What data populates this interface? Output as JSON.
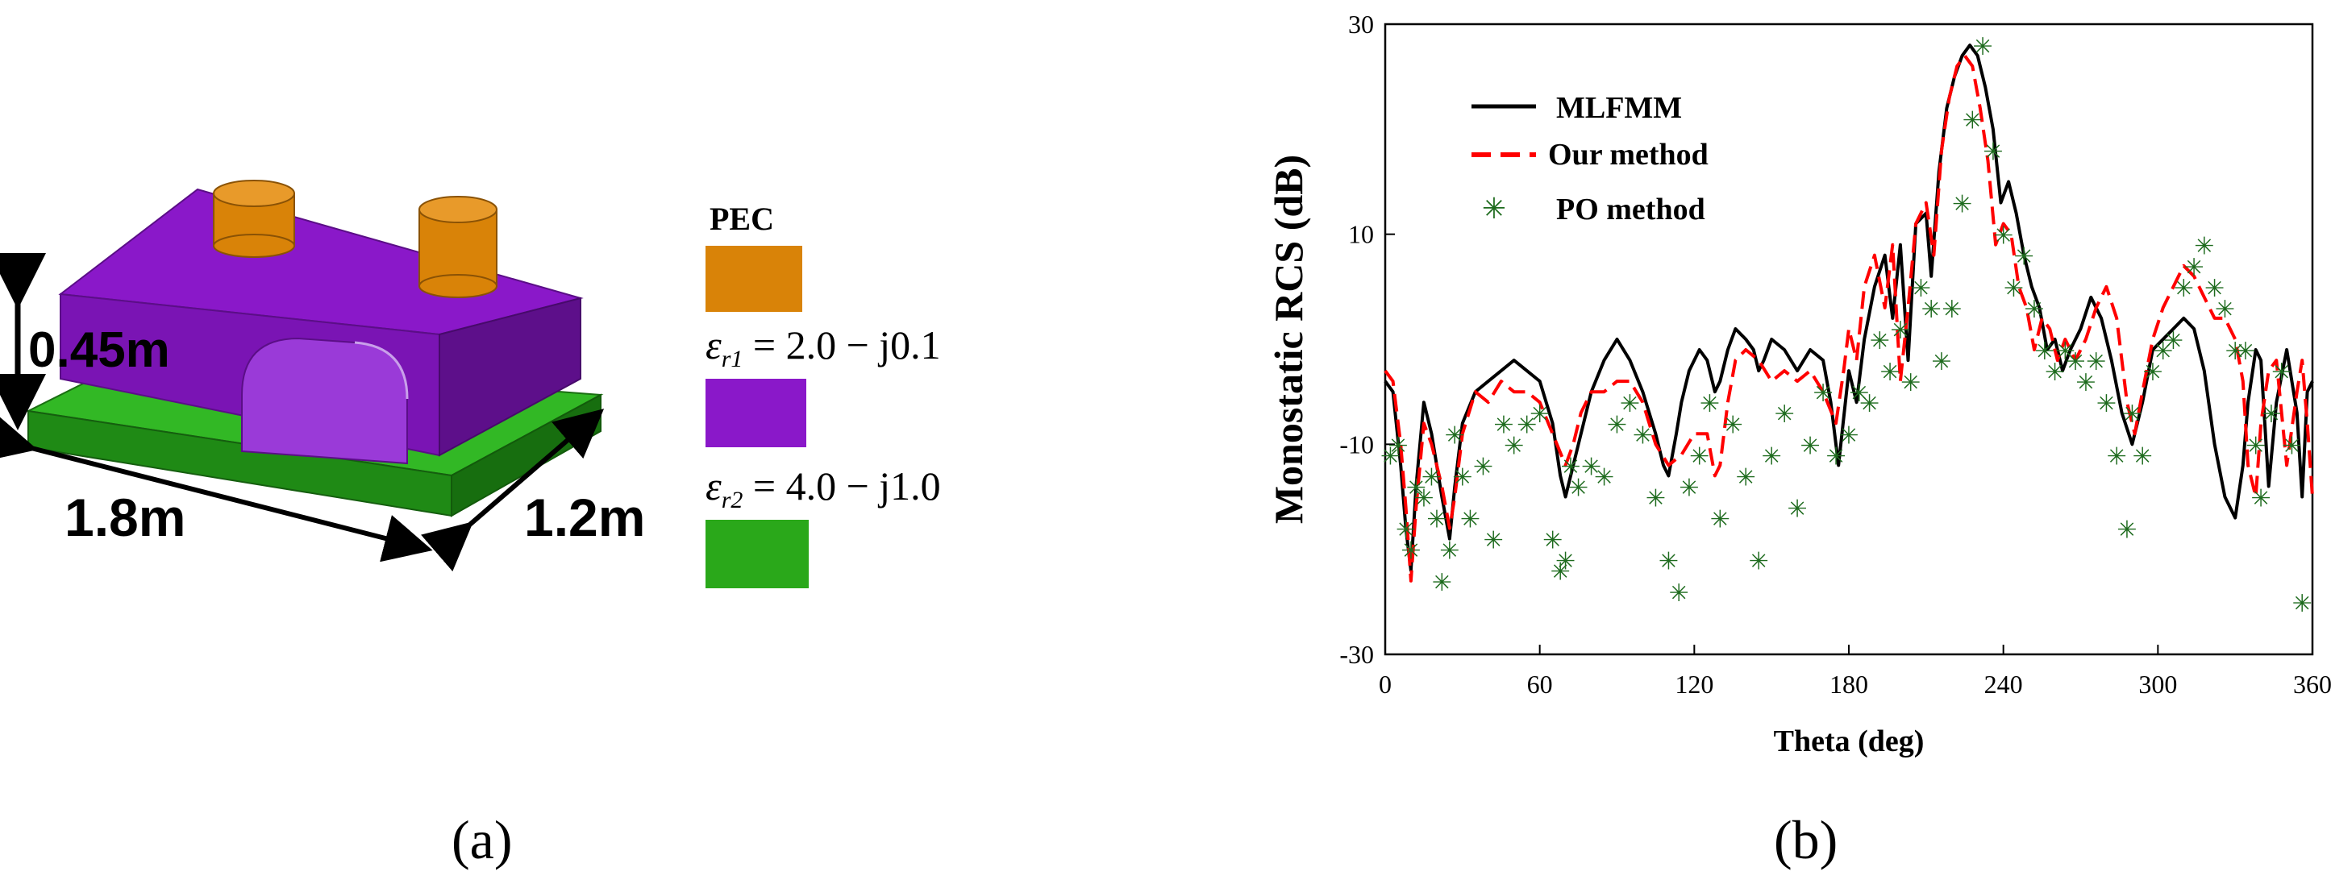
{
  "figure_a": {
    "caption": "(a)",
    "dimensions": {
      "height": "0.45m",
      "length": "1.8m",
      "width": "1.2m"
    },
    "legend": [
      {
        "label": "PEC",
        "color": "#d98308"
      },
      {
        "label_symbol": "ε",
        "label_sub": "r1",
        "label_rest": " = 2.0 − j0.1",
        "color": "#8a18c9"
      },
      {
        "label_symbol": "ε",
        "label_sub": "r2",
        "label_rest": " = 4.0 − j1.0",
        "color": "#2aa81a"
      }
    ],
    "colors": {
      "pec": "#d98308",
      "er1": "#8a18c9",
      "er2": "#2aa81a"
    }
  },
  "figure_b": {
    "caption": "(b)",
    "legend": {
      "mlfmm": "MLFMM",
      "ours": "Our method",
      "po": "PO method"
    }
  },
  "chart_data": {
    "type": "line",
    "title": "",
    "xlabel": "Theta (deg)",
    "ylabel": "Monostatic RCS (dB)",
    "xlim": [
      0,
      360
    ],
    "ylim": [
      -30,
      30
    ],
    "xticks": [
      "0",
      "60",
      "120",
      "180",
      "240",
      "300",
      "360"
    ],
    "yticks": [
      "30",
      "10",
      "-10",
      "-30"
    ],
    "legend_position": "top-left",
    "series": [
      {
        "name": "MLFMM",
        "color": "#000000",
        "style": "solid",
        "x": [
          0,
          3,
          6,
          8,
          10,
          12,
          15,
          18,
          22,
          25,
          27,
          30,
          35,
          40,
          45,
          50,
          55,
          60,
          65,
          68,
          70,
          72,
          75,
          80,
          85,
          90,
          95,
          100,
          105,
          108,
          110,
          113,
          115,
          118,
          122,
          125,
          128,
          130,
          133,
          136,
          140,
          143,
          145,
          147,
          150,
          155,
          160,
          165,
          170,
          173,
          176,
          180,
          183,
          186,
          190,
          194,
          197,
          200,
          203,
          206,
          210,
          212,
          215,
          218,
          221,
          224,
          227,
          230,
          233,
          236,
          239,
          242,
          245,
          248,
          251,
          254,
          257,
          260,
          263,
          266,
          270,
          274,
          278,
          282,
          286,
          290,
          294,
          298,
          302,
          306,
          310,
          314,
          318,
          322,
          326,
          330,
          333,
          335,
          338,
          340,
          343,
          346,
          350,
          354,
          356,
          358,
          360
        ],
        "y": [
          -4,
          -5,
          -12,
          -18,
          -22,
          -14,
          -6,
          -9,
          -15,
          -19,
          -14,
          -8,
          -5,
          -4,
          -3,
          -2,
          -3,
          -4,
          -8,
          -13,
          -15,
          -13,
          -10,
          -5,
          -2,
          0,
          -2,
          -5,
          -9,
          -12,
          -13,
          -9,
          -6,
          -3,
          -1,
          -2,
          -5,
          -4,
          -1,
          1,
          0,
          -1,
          -3,
          -2,
          0,
          -1,
          -3,
          -1,
          -2,
          -6,
          -12,
          -3,
          -6,
          0,
          5,
          8,
          2,
          9,
          -2,
          11,
          12,
          6,
          16,
          22,
          25,
          27,
          28,
          27,
          24,
          20,
          13,
          15,
          12,
          8,
          5,
          3,
          -1,
          0,
          -3,
          -1,
          1,
          4,
          2,
          -2,
          -7,
          -10,
          -6,
          -1,
          0,
          1,
          2,
          1,
          -3,
          -10,
          -15,
          -17,
          -12,
          -6,
          -1,
          -2,
          -14,
          -6,
          -1,
          -7,
          -15,
          -5,
          -4
        ],
        "values": [
          -4,
          -5,
          -12,
          -18,
          -22,
          -14,
          -6,
          -9,
          -15,
          -19,
          -14,
          -8,
          -5,
          -4,
          -3,
          -2,
          -3,
          -4,
          -8,
          -13,
          -15,
          -13,
          -10,
          -5,
          -2,
          0,
          -2,
          -5,
          -9,
          -12,
          -13,
          -9,
          -6,
          -3,
          -1,
          -2,
          -5,
          -4,
          -1,
          1,
          0,
          -1,
          -3,
          -2,
          0,
          -1,
          -3,
          -1,
          -2,
          -6,
          -12,
          -3,
          -6,
          0,
          5,
          8,
          2,
          9,
          -2,
          11,
          12,
          6,
          16,
          22,
          25,
          27,
          28,
          27,
          24,
          20,
          13,
          15,
          12,
          8,
          5,
          3,
          -1,
          0,
          -3,
          -1,
          1,
          4,
          2,
          -2,
          -7,
          -10,
          -6,
          -1,
          0,
          1,
          2,
          1,
          -3,
          -10,
          -15,
          -17,
          -12,
          -6,
          -1,
          -2,
          -14,
          -6,
          -1,
          -7,
          -15,
          -5,
          -4
        ]
      },
      {
        "name": "Our method",
        "color": "#ff0000",
        "style": "dashed",
        "x": [
          0,
          3,
          6,
          8,
          10,
          12,
          15,
          18,
          22,
          25,
          27,
          30,
          35,
          40,
          45,
          50,
          55,
          60,
          65,
          70,
          73,
          76,
          80,
          85,
          90,
          95,
          100,
          105,
          110,
          115,
          120,
          125,
          128,
          130,
          133,
          136,
          140,
          145,
          150,
          155,
          160,
          165,
          170,
          175,
          178,
          180,
          183,
          186,
          190,
          194,
          197,
          200,
          203,
          206,
          210,
          213,
          216,
          219,
          222,
          225,
          228,
          231,
          234,
          237,
          240,
          243,
          246,
          249,
          252,
          255,
          258,
          261,
          264,
          268,
          272,
          276,
          280,
          284,
          288,
          291,
          294,
          298,
          302,
          306,
          310,
          314,
          318,
          322,
          326,
          330,
          333,
          335,
          338,
          340,
          343,
          346,
          350,
          354,
          356,
          358,
          360
        ],
        "y": [
          -3,
          -4,
          -10,
          -16,
          -23,
          -16,
          -8,
          -10,
          -14,
          -18,
          -15,
          -9,
          -5,
          -6,
          -4,
          -5,
          -5,
          -6,
          -9,
          -12,
          -10,
          -7,
          -5,
          -5,
          -4,
          -4,
          -6,
          -10,
          -12,
          -11,
          -9,
          -9,
          -13,
          -12,
          -6,
          -2,
          -1,
          -2,
          -4,
          -3,
          -4,
          -3,
          -5,
          -8,
          -3,
          1,
          -2,
          5,
          8,
          3,
          9,
          -4,
          3,
          11,
          13,
          8,
          18,
          23,
          26,
          27,
          26,
          22,
          17,
          9,
          11,
          10,
          5,
          3,
          -1,
          2,
          1,
          -2,
          0,
          -2,
          0,
          3,
          5,
          2,
          -6,
          -9,
          -5,
          0,
          3,
          5,
          7,
          6,
          4,
          2,
          2,
          0,
          -4,
          -12,
          -15,
          -8,
          -3,
          -2,
          -12,
          -5,
          -2,
          -8,
          -15
        ],
        "values": [
          -3,
          -4,
          -10,
          -16,
          -23,
          -16,
          -8,
          -10,
          -14,
          -18,
          -15,
          -9,
          -5,
          -6,
          -4,
          -5,
          -5,
          -6,
          -9,
          -12,
          -10,
          -7,
          -5,
          -5,
          -4,
          -4,
          -6,
          -10,
          -12,
          -11,
          -9,
          -9,
          -13,
          -12,
          -6,
          -2,
          -1,
          -2,
          -4,
          -3,
          -4,
          -3,
          -5,
          -8,
          -3,
          1,
          -2,
          5,
          8,
          3,
          9,
          -4,
          3,
          11,
          13,
          8,
          18,
          23,
          26,
          27,
          26,
          22,
          17,
          9,
          11,
          10,
          5,
          3,
          -1,
          2,
          1,
          -2,
          0,
          -2,
          0,
          3,
          5,
          2,
          -6,
          -9,
          -5,
          0,
          3,
          5,
          7,
          6,
          4,
          2,
          2,
          0,
          -4,
          -12,
          -15,
          -8,
          -3,
          -2,
          -12,
          -5,
          -2,
          -8,
          -15
        ]
      },
      {
        "name": "PO method",
        "color": "#1e6b1e",
        "style": "markers",
        "x": [
          2,
          5,
          8,
          10,
          12,
          15,
          18,
          20,
          22,
          25,
          27,
          30,
          33,
          38,
          42,
          46,
          50,
          55,
          60,
          65,
          68,
          70,
          72,
          75,
          80,
          85,
          90,
          95,
          100,
          105,
          110,
          114,
          118,
          122,
          126,
          130,
          135,
          140,
          145,
          150,
          155,
          160,
          165,
          170,
          175,
          180,
          184,
          188,
          192,
          196,
          200,
          204,
          208,
          212,
          216,
          220,
          224,
          228,
          232,
          236,
          240,
          244,
          248,
          252,
          256,
          260,
          264,
          268,
          272,
          276,
          280,
          284,
          288,
          290,
          294,
          298,
          302,
          306,
          310,
          314,
          318,
          322,
          326,
          330,
          334,
          338,
          340,
          344,
          348,
          352,
          356
        ],
        "y": [
          -11,
          -10,
          -18,
          -20,
          -14,
          -15,
          -13,
          -17,
          -23,
          -20,
          -9,
          -13,
          -17,
          -12,
          -19,
          -8,
          -10,
          -8,
          -7,
          -19,
          -22,
          -21,
          -12,
          -14,
          -12,
          -13,
          -8,
          -6,
          -9,
          -15,
          -21,
          -24,
          -14,
          -11,
          -6,
          -17,
          -8,
          -13,
          -21,
          -11,
          -7,
          -16,
          -10,
          -5,
          -11,
          -9,
          -5,
          -6,
          0,
          -3,
          1,
          -4,
          5,
          3,
          -2,
          3,
          13,
          21,
          28,
          18,
          10,
          5,
          8,
          3,
          -1,
          -3,
          -1,
          -2,
          -4,
          -2,
          -6,
          -11,
          -18,
          -7,
          -11,
          -3,
          -1,
          0,
          5,
          7,
          9,
          5,
          3,
          -1,
          -1,
          -10,
          -15,
          -7,
          -3,
          -10,
          -25
        ],
        "values": [
          -11,
          -10,
          -18,
          -20,
          -14,
          -15,
          -13,
          -17,
          -23,
          -20,
          -9,
          -13,
          -17,
          -12,
          -19,
          -8,
          -10,
          -8,
          -7,
          -19,
          -22,
          -21,
          -12,
          -14,
          -12,
          -13,
          -8,
          -6,
          -9,
          -15,
          -21,
          -24,
          -14,
          -11,
          -6,
          -17,
          -8,
          -13,
          -21,
          -11,
          -7,
          -16,
          -10,
          -5,
          -11,
          -9,
          -5,
          -6,
          0,
          -3,
          1,
          -4,
          5,
          3,
          -2,
          3,
          13,
          21,
          28,
          18,
          10,
          5,
          8,
          3,
          -1,
          -3,
          -1,
          -2,
          -4,
          -2,
          -6,
          -11,
          -18,
          -7,
          -11,
          -3,
          -1,
          0,
          5,
          7,
          9,
          5,
          3,
          -1,
          -1,
          -10,
          -15,
          -7,
          -3,
          -10,
          -25
        ]
      }
    ]
  }
}
